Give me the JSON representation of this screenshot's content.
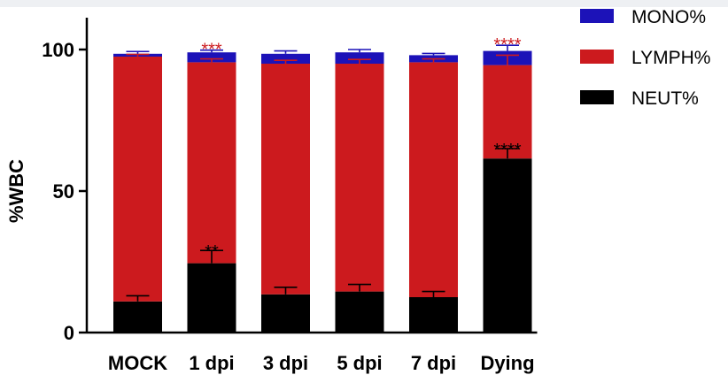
{
  "chart_data": {
    "type": "bar",
    "stacked": true,
    "categories": [
      "MOCK",
      "1 dpi",
      "3 dpi",
      "5 dpi",
      "7 dpi",
      "Dying"
    ],
    "ylabel": "%WBC",
    "ylim": [
      0,
      100
    ],
    "yticks": [
      "0",
      "50",
      "100"
    ],
    "legend_position": "top-right",
    "series": [
      {
        "name": "NEUT%",
        "color": "#000000",
        "values": [
          11,
          24.5,
          13.5,
          14.5,
          12.5,
          61.5
        ],
        "error": [
          2,
          4.5,
          2.5,
          2.5,
          2,
          3.5
        ]
      },
      {
        "name": "LYMPH%",
        "color": "#cc1a1e",
        "values": [
          86.5,
          71,
          81.5,
          80.5,
          83,
          33
        ],
        "error": [
          0.8,
          1.2,
          1.2,
          1.5,
          1.2,
          3.5
        ]
      },
      {
        "name": "MONO%",
        "color": "#1c12b8",
        "values": [
          1,
          3.5,
          3.5,
          4,
          2.5,
          5
        ],
        "error": [
          0.8,
          0.8,
          1,
          1,
          0.6,
          2
        ]
      }
    ],
    "annotations": [
      {
        "category": "1 dpi",
        "text": "***",
        "position": "above-stack",
        "color": "#cc1a1e"
      },
      {
        "category": "1 dpi",
        "text": "**",
        "position": "above-neut",
        "color": "#000000"
      },
      {
        "category": "Dying",
        "text": "****",
        "position": "above-stack",
        "color": "#cc1a1e"
      },
      {
        "category": "Dying",
        "text": "****",
        "position": "above-neut",
        "color": "#000000"
      }
    ]
  }
}
